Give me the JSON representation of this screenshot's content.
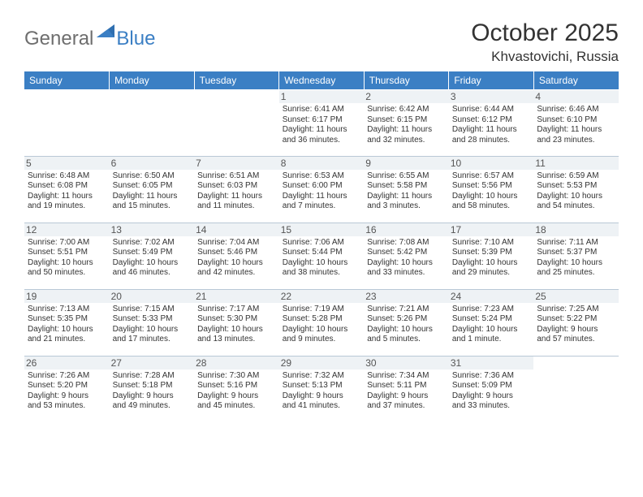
{
  "brand": {
    "part1": "General",
    "part2": "Blue"
  },
  "title": "October 2025",
  "location": "Khvastovichi, Russia",
  "colors": {
    "header_bg": "#3b7fc4",
    "header_text": "#ffffff",
    "border": "#b9c8d6",
    "daynum_bg": "#eef2f5",
    "logo_gray": "#6e6e6e",
    "logo_blue": "#3b7fc4"
  },
  "weekdays": [
    "Sunday",
    "Monday",
    "Tuesday",
    "Wednesday",
    "Thursday",
    "Friday",
    "Saturday"
  ],
  "weeks": [
    [
      {
        "empty": true
      },
      {
        "empty": true
      },
      {
        "empty": true
      },
      {
        "day": "1",
        "sunrise": "Sunrise: 6:41 AM",
        "sunset": "Sunset: 6:17 PM",
        "daylight1": "Daylight: 11 hours",
        "daylight2": "and 36 minutes."
      },
      {
        "day": "2",
        "sunrise": "Sunrise: 6:42 AM",
        "sunset": "Sunset: 6:15 PM",
        "daylight1": "Daylight: 11 hours",
        "daylight2": "and 32 minutes."
      },
      {
        "day": "3",
        "sunrise": "Sunrise: 6:44 AM",
        "sunset": "Sunset: 6:12 PM",
        "daylight1": "Daylight: 11 hours",
        "daylight2": "and 28 minutes."
      },
      {
        "day": "4",
        "sunrise": "Sunrise: 6:46 AM",
        "sunset": "Sunset: 6:10 PM",
        "daylight1": "Daylight: 11 hours",
        "daylight2": "and 23 minutes."
      }
    ],
    [
      {
        "day": "5",
        "sunrise": "Sunrise: 6:48 AM",
        "sunset": "Sunset: 6:08 PM",
        "daylight1": "Daylight: 11 hours",
        "daylight2": "and 19 minutes."
      },
      {
        "day": "6",
        "sunrise": "Sunrise: 6:50 AM",
        "sunset": "Sunset: 6:05 PM",
        "daylight1": "Daylight: 11 hours",
        "daylight2": "and 15 minutes."
      },
      {
        "day": "7",
        "sunrise": "Sunrise: 6:51 AM",
        "sunset": "Sunset: 6:03 PM",
        "daylight1": "Daylight: 11 hours",
        "daylight2": "and 11 minutes."
      },
      {
        "day": "8",
        "sunrise": "Sunrise: 6:53 AM",
        "sunset": "Sunset: 6:00 PM",
        "daylight1": "Daylight: 11 hours",
        "daylight2": "and 7 minutes."
      },
      {
        "day": "9",
        "sunrise": "Sunrise: 6:55 AM",
        "sunset": "Sunset: 5:58 PM",
        "daylight1": "Daylight: 11 hours",
        "daylight2": "and 3 minutes."
      },
      {
        "day": "10",
        "sunrise": "Sunrise: 6:57 AM",
        "sunset": "Sunset: 5:56 PM",
        "daylight1": "Daylight: 10 hours",
        "daylight2": "and 58 minutes."
      },
      {
        "day": "11",
        "sunrise": "Sunrise: 6:59 AM",
        "sunset": "Sunset: 5:53 PM",
        "daylight1": "Daylight: 10 hours",
        "daylight2": "and 54 minutes."
      }
    ],
    [
      {
        "day": "12",
        "sunrise": "Sunrise: 7:00 AM",
        "sunset": "Sunset: 5:51 PM",
        "daylight1": "Daylight: 10 hours",
        "daylight2": "and 50 minutes."
      },
      {
        "day": "13",
        "sunrise": "Sunrise: 7:02 AM",
        "sunset": "Sunset: 5:49 PM",
        "daylight1": "Daylight: 10 hours",
        "daylight2": "and 46 minutes."
      },
      {
        "day": "14",
        "sunrise": "Sunrise: 7:04 AM",
        "sunset": "Sunset: 5:46 PM",
        "daylight1": "Daylight: 10 hours",
        "daylight2": "and 42 minutes."
      },
      {
        "day": "15",
        "sunrise": "Sunrise: 7:06 AM",
        "sunset": "Sunset: 5:44 PM",
        "daylight1": "Daylight: 10 hours",
        "daylight2": "and 38 minutes."
      },
      {
        "day": "16",
        "sunrise": "Sunrise: 7:08 AM",
        "sunset": "Sunset: 5:42 PM",
        "daylight1": "Daylight: 10 hours",
        "daylight2": "and 33 minutes."
      },
      {
        "day": "17",
        "sunrise": "Sunrise: 7:10 AM",
        "sunset": "Sunset: 5:39 PM",
        "daylight1": "Daylight: 10 hours",
        "daylight2": "and 29 minutes."
      },
      {
        "day": "18",
        "sunrise": "Sunrise: 7:11 AM",
        "sunset": "Sunset: 5:37 PM",
        "daylight1": "Daylight: 10 hours",
        "daylight2": "and 25 minutes."
      }
    ],
    [
      {
        "day": "19",
        "sunrise": "Sunrise: 7:13 AM",
        "sunset": "Sunset: 5:35 PM",
        "daylight1": "Daylight: 10 hours",
        "daylight2": "and 21 minutes."
      },
      {
        "day": "20",
        "sunrise": "Sunrise: 7:15 AM",
        "sunset": "Sunset: 5:33 PM",
        "daylight1": "Daylight: 10 hours",
        "daylight2": "and 17 minutes."
      },
      {
        "day": "21",
        "sunrise": "Sunrise: 7:17 AM",
        "sunset": "Sunset: 5:30 PM",
        "daylight1": "Daylight: 10 hours",
        "daylight2": "and 13 minutes."
      },
      {
        "day": "22",
        "sunrise": "Sunrise: 7:19 AM",
        "sunset": "Sunset: 5:28 PM",
        "daylight1": "Daylight: 10 hours",
        "daylight2": "and 9 minutes."
      },
      {
        "day": "23",
        "sunrise": "Sunrise: 7:21 AM",
        "sunset": "Sunset: 5:26 PM",
        "daylight1": "Daylight: 10 hours",
        "daylight2": "and 5 minutes."
      },
      {
        "day": "24",
        "sunrise": "Sunrise: 7:23 AM",
        "sunset": "Sunset: 5:24 PM",
        "daylight1": "Daylight: 10 hours",
        "daylight2": "and 1 minute."
      },
      {
        "day": "25",
        "sunrise": "Sunrise: 7:25 AM",
        "sunset": "Sunset: 5:22 PM",
        "daylight1": "Daylight: 9 hours",
        "daylight2": "and 57 minutes."
      }
    ],
    [
      {
        "day": "26",
        "sunrise": "Sunrise: 7:26 AM",
        "sunset": "Sunset: 5:20 PM",
        "daylight1": "Daylight: 9 hours",
        "daylight2": "and 53 minutes."
      },
      {
        "day": "27",
        "sunrise": "Sunrise: 7:28 AM",
        "sunset": "Sunset: 5:18 PM",
        "daylight1": "Daylight: 9 hours",
        "daylight2": "and 49 minutes."
      },
      {
        "day": "28",
        "sunrise": "Sunrise: 7:30 AM",
        "sunset": "Sunset: 5:16 PM",
        "daylight1": "Daylight: 9 hours",
        "daylight2": "and 45 minutes."
      },
      {
        "day": "29",
        "sunrise": "Sunrise: 7:32 AM",
        "sunset": "Sunset: 5:13 PM",
        "daylight1": "Daylight: 9 hours",
        "daylight2": "and 41 minutes."
      },
      {
        "day": "30",
        "sunrise": "Sunrise: 7:34 AM",
        "sunset": "Sunset: 5:11 PM",
        "daylight1": "Daylight: 9 hours",
        "daylight2": "and 37 minutes."
      },
      {
        "day": "31",
        "sunrise": "Sunrise: 7:36 AM",
        "sunset": "Sunset: 5:09 PM",
        "daylight1": "Daylight: 9 hours",
        "daylight2": "and 33 minutes."
      },
      {
        "empty": true
      }
    ]
  ]
}
